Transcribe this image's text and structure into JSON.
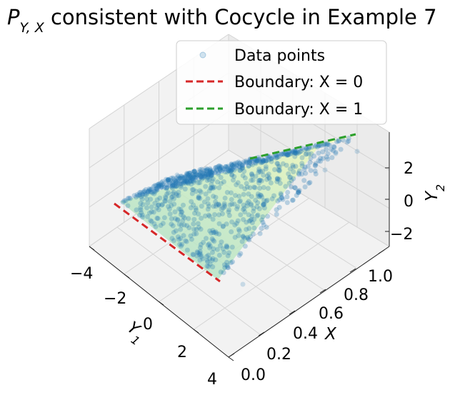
{
  "chart_data": {
    "type": "scatter",
    "projection": "3d",
    "title": "P_{Y,X} consistent with Cocycle in Example 7",
    "title_parts": {
      "main": "P",
      "sub": "Y, X",
      "rest": "consistent with Cocycle in Example 7"
    },
    "axes": {
      "y1": {
        "label": "Y",
        "label_sub": "1",
        "range": [
          -4,
          4
        ],
        "ticks": [
          "−4",
          "−2",
          "0",
          "2",
          "4"
        ]
      },
      "x": {
        "label": "X",
        "range": [
          0.0,
          1.0
        ],
        "ticks": [
          "0.0",
          "0.2",
          "0.4",
          "0.6",
          "0.8",
          "1.0"
        ]
      },
      "y2": {
        "label": "Y",
        "label_sub": "2",
        "range": [
          -3,
          3
        ],
        "ticks": [
          "2",
          "0",
          "−2"
        ]
      }
    },
    "grid": true,
    "legend_position": "top-right",
    "series": [
      {
        "name": "Data points",
        "kind": "scatter",
        "color": "#1f77b4",
        "alpha": 0.15
      },
      {
        "name": "Boundary: X = 0",
        "kind": "dashed-line",
        "color": "#d62728",
        "x": 0,
        "y1": [
          -4,
          4
        ],
        "y2": [
          -3,
          -1.5
        ]
      },
      {
        "name": "Boundary: X = 1",
        "kind": "dashed-line",
        "color": "#2ca02c",
        "x": 1,
        "y1": [
          -4,
          4
        ],
        "y2": [
          1.5,
          3
        ]
      }
    ],
    "surface": {
      "colormap": [
        "#b3e2cd",
        "#ffffb2"
      ],
      "alpha": 0.5
    }
  }
}
